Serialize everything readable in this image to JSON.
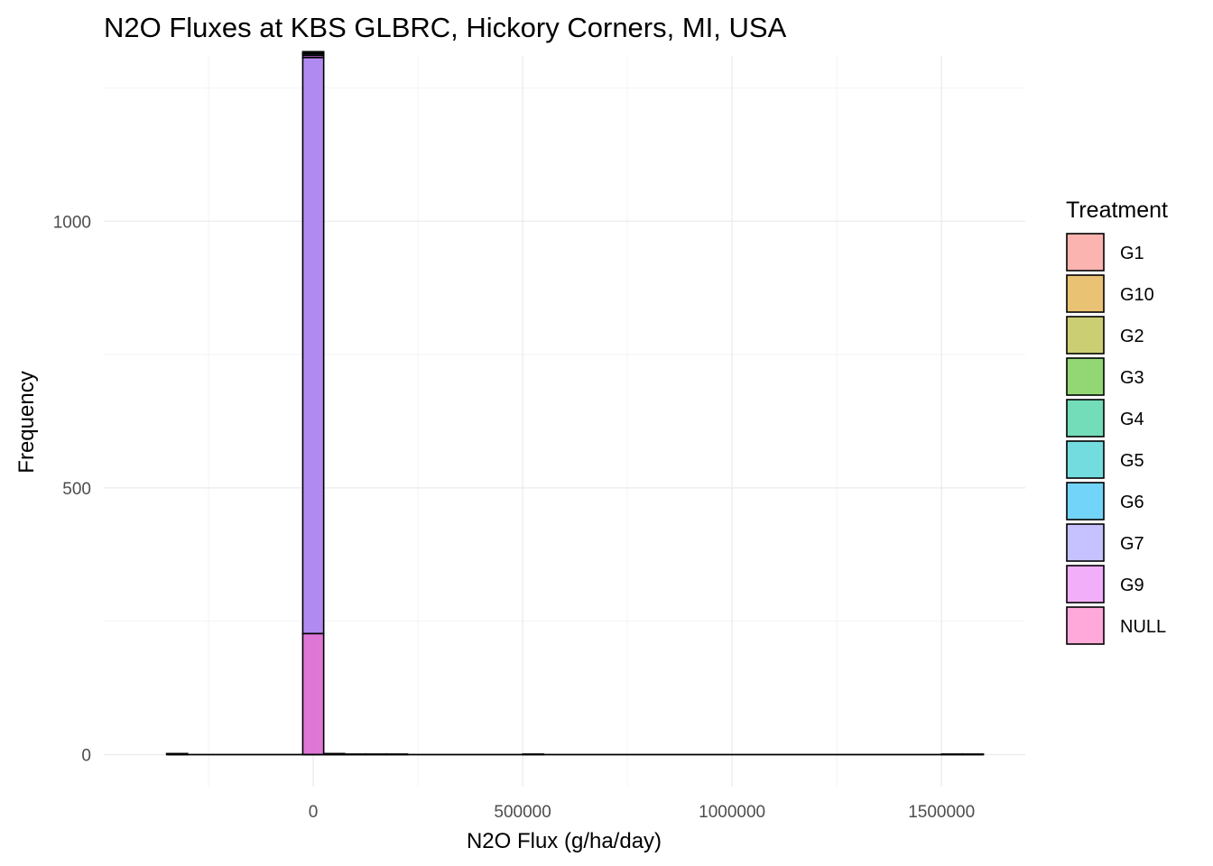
{
  "chart_data": {
    "type": "bar",
    "subtype": "stacked-histogram",
    "title": "N2O Fluxes at KBS GLBRC, Hickory Corners, MI, USA",
    "xlabel": "N2O Flux (g/ha/day)",
    "ylabel": "Frequency",
    "xlim": [
      -500000,
      1700000
    ],
    "ylim": [
      -60,
      1310
    ],
    "x_ticks": [
      0,
      500000,
      1000000,
      1500000
    ],
    "x_tick_labels": [
      "0",
      "500000",
      "1000000",
      "1500000"
    ],
    "x_minor_ticks": [
      -250000,
      250000,
      750000,
      1250000
    ],
    "y_ticks": [
      0,
      500,
      1000
    ],
    "y_tick_labels": [
      "0",
      "500",
      "1000"
    ],
    "y_minor_ticks": [
      250,
      750,
      1250
    ],
    "grid": true,
    "bin_width": 50000,
    "legend": {
      "title": "Treatment",
      "position": "right",
      "entries": [
        "G1",
        "G10",
        "G2",
        "G3",
        "G4",
        "G5",
        "G6",
        "G7",
        "G9",
        "NULL"
      ]
    },
    "colors": {
      "G1": "#f8766d",
      "G10": "#d89000",
      "G2": "#a3a500",
      "G3": "#39b600",
      "G4": "#00bf7d",
      "G5": "#00bfc4",
      "G6": "#00b0f6",
      "G7": "#9590ff",
      "G9": "#e76bf3",
      "NULL": "#ff62bc"
    },
    "bar_color_blended": {
      "G7": "#ad84f0",
      "NULL": "#dc70d4"
    },
    "bars": [
      {
        "x_start": -350000,
        "x_end": -300000,
        "segments": [
          {
            "series": "NULL",
            "count": 2
          }
        ]
      },
      {
        "x_start": -300000,
        "x_end": -250000,
        "segments": []
      },
      {
        "x_start": -250000,
        "x_end": -200000,
        "segments": []
      },
      {
        "x_start": -200000,
        "x_end": -150000,
        "segments": []
      },
      {
        "x_start": -150000,
        "x_end": -100000,
        "segments": []
      },
      {
        "x_start": -100000,
        "x_end": -50000,
        "segments": []
      },
      {
        "x_start": -50000,
        "x_end": 0,
        "segments": []
      },
      {
        "x_start": -25000,
        "x_end": 25000,
        "segments": [
          {
            "series": "NULL",
            "count": 227
          },
          {
            "series": "G7",
            "count": 1080
          },
          {
            "series": "G9",
            "count": 4
          },
          {
            "series": "G6",
            "count": 3
          },
          {
            "series": "G5",
            "count": 2
          },
          {
            "series": "G4",
            "count": 2
          }
        ]
      },
      {
        "x_start": 25000,
        "x_end": 75000,
        "segments": [
          {
            "series": "NULL",
            "count": 2
          }
        ]
      },
      {
        "x_start": 75000,
        "x_end": 125000,
        "segments": [
          {
            "series": "NULL",
            "count": 1
          }
        ]
      },
      {
        "x_start": 125000,
        "x_end": 175000,
        "segments": [
          {
            "series": "NULL",
            "count": 1
          }
        ]
      },
      {
        "x_start": 175000,
        "x_end": 225000,
        "segments": [
          {
            "series": "NULL",
            "count": 1
          }
        ]
      },
      {
        "x_start": 500000,
        "x_end": 550000,
        "segments": [
          {
            "series": "NULL",
            "count": 1
          }
        ]
      },
      {
        "x_start": 1500000,
        "x_end": 1550000,
        "segments": [
          {
            "series": "NULL",
            "count": 1
          }
        ]
      },
      {
        "x_start": 1550000,
        "x_end": 1600000,
        "segments": [
          {
            "series": "NULL",
            "count": 1
          }
        ]
      }
    ],
    "baseline_range": [
      -350000,
      1600000
    ]
  }
}
